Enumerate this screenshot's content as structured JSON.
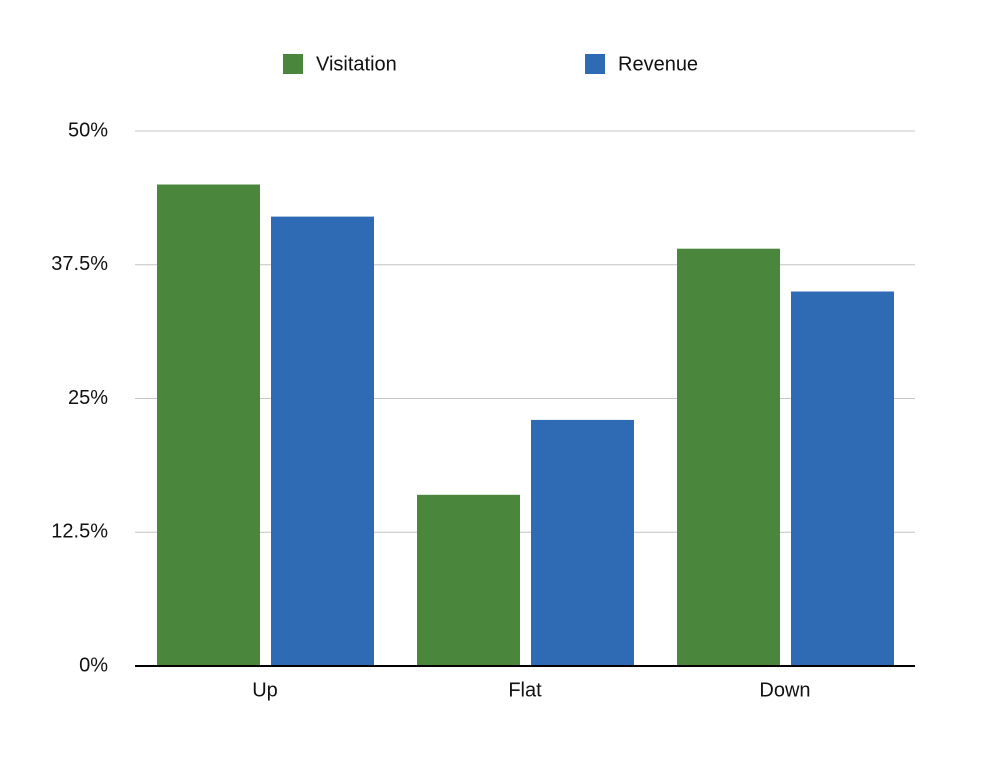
{
  "chart_data": {
    "type": "bar",
    "categories": [
      "Up",
      "Flat",
      "Down"
    ],
    "series": [
      {
        "name": "Visitation",
        "color": "#4a873c",
        "values": [
          45,
          16,
          39
        ]
      },
      {
        "name": "Revenue",
        "color": "#2f6bb5",
        "values": [
          42,
          23,
          35
        ]
      }
    ],
    "ylim": [
      0,
      50
    ],
    "yticks": [
      {
        "value": 0,
        "label": "0%"
      },
      {
        "value": 12.5,
        "label": "12.5%"
      },
      {
        "value": 25,
        "label": "25%"
      },
      {
        "value": 37.5,
        "label": "37.5%"
      },
      {
        "value": 50,
        "label": "50%"
      }
    ],
    "grid": true,
    "legend": "top"
  }
}
